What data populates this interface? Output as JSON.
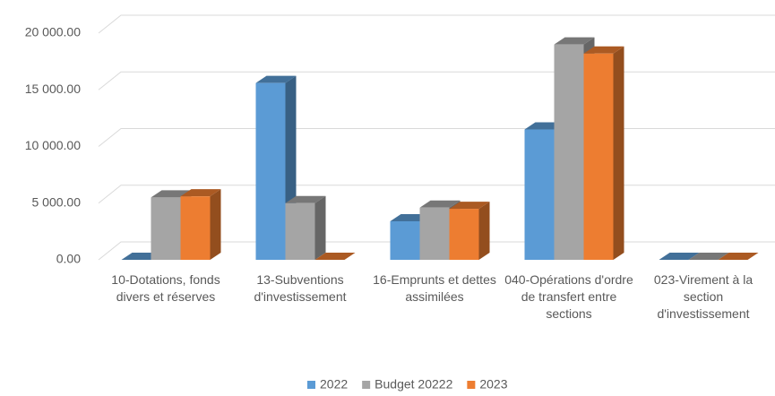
{
  "chart_data": {
    "type": "bar3d",
    "categories": [
      "10-Dotations, fonds divers et réserves",
      "13-Subventions d'investissement",
      "16-Emprunts et dettes assimilées",
      "040-Opérations d'ordre de transfert entre sections",
      "023-Virement à la section d'investissement"
    ],
    "series": [
      {
        "name": "2022",
        "color": "#5b9bd5",
        "values": [
          0,
          15600,
          3400,
          11500,
          0
        ]
      },
      {
        "name": "Budget 20222",
        "color": "#a5a5a5",
        "values": [
          5500,
          5000,
          4600,
          19000,
          0
        ]
      },
      {
        "name": "2023",
        "color": "#ed7d31",
        "values": [
          5600,
          0,
          4500,
          18200,
          0
        ]
      }
    ],
    "ylim": [
      0,
      20000
    ],
    "yticks": [
      {
        "value": 0,
        "label": "0.00"
      },
      {
        "value": 5000,
        "label": "5 000.00"
      },
      {
        "value": 10000,
        "label": "10 000.00"
      },
      {
        "value": 15000,
        "label": "15 000.00"
      },
      {
        "value": 20000,
        "label": "20 000.00"
      }
    ],
    "grid": true,
    "legend": "bottom"
  }
}
